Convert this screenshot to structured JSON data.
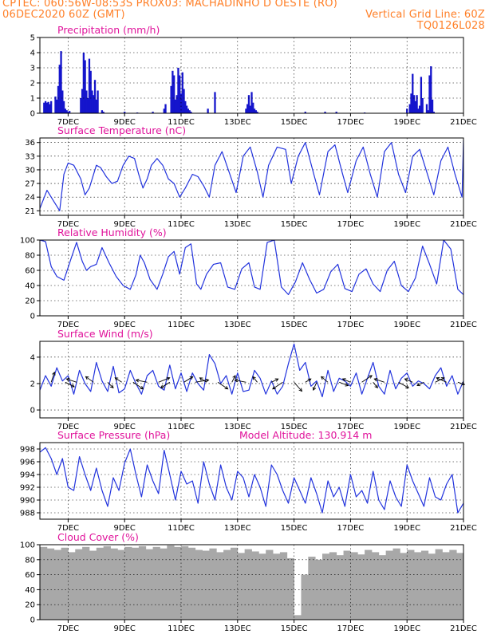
{
  "header": {
    "line1_left": "CPTEC:   060:56W-08:53S   PROX03: MACHADINHO D OESTE (RO)",
    "line2_left": "06DEC2020 60Z (GMT)",
    "line2_right": "Vertical Grid Line: 60Z",
    "line3_right": "TQ0126L028"
  },
  "x_axis": {
    "range": [
      6,
      21
    ],
    "ticks": [
      7,
      9,
      11,
      13,
      15,
      17,
      19,
      21
    ],
    "tick_labels": [
      "7DEC",
      "9DEC",
      "11DEC",
      "13DEC",
      "15DEC",
      "17DEC",
      "19DEC",
      "21DEC"
    ]
  },
  "colors": {
    "line": "#2233dd",
    "bar": "#1515cc",
    "cloud": "#a8a8a8",
    "title": "#e0139b",
    "header": "#ff7f27"
  },
  "chart_data": [
    {
      "type": "bar",
      "title": "Precipitation  (mm/h)",
      "ylim": [
        0,
        5
      ],
      "yticks": [
        0,
        1,
        2,
        3,
        4,
        5
      ],
      "grid": true,
      "x": [
        6.15,
        6.2,
        6.25,
        6.3,
        6.35,
        6.4,
        6.55,
        6.6,
        6.65,
        6.7,
        6.75,
        6.8,
        6.85,
        6.9,
        6.95,
        7.0,
        7.05,
        7.45,
        7.5,
        7.55,
        7.6,
        7.65,
        7.7,
        7.75,
        7.8,
        7.85,
        7.9,
        7.95,
        8.0,
        8.05,
        8.2,
        8.25,
        9.0,
        9.45,
        10.0,
        10.4,
        10.45,
        10.65,
        10.7,
        10.75,
        10.8,
        10.85,
        10.9,
        10.95,
        11.0,
        11.05,
        11.1,
        11.15,
        11.2,
        11.25,
        11.3,
        11.35,
        11.95,
        12.2,
        13.3,
        13.35,
        13.4,
        13.45,
        13.5,
        13.55,
        13.6,
        13.65,
        13.7,
        15.4,
        16.1,
        16.5,
        17.5,
        19.0,
        19.1,
        19.15,
        19.2,
        19.25,
        19.3,
        19.35,
        19.4,
        19.45,
        19.5,
        19.55,
        19.7,
        19.75,
        19.8,
        19.85,
        19.9,
        19.95
      ],
      "values": [
        0.7,
        0.8,
        0.7,
        0.75,
        0.6,
        0.8,
        1.1,
        0.9,
        1.8,
        3.2,
        4.1,
        1.5,
        0.8,
        0.3,
        0.2,
        0.1,
        0.15,
        1.0,
        1.6,
        4.0,
        3.5,
        1.5,
        1.0,
        3.6,
        2.8,
        1.5,
        1.2,
        2.2,
        0.9,
        1.5,
        0.2,
        0.1,
        0.1,
        0.05,
        0.1,
        0.3,
        0.6,
        1.8,
        2.8,
        2.5,
        0.9,
        1.2,
        3.0,
        2.5,
        1.3,
        2.7,
        1.6,
        0.8,
        0.5,
        0.3,
        0.2,
        0.1,
        0.3,
        1.4,
        0.3,
        0.6,
        1.2,
        0.5,
        1.4,
        0.7,
        0.3,
        0.2,
        0.1,
        0.1,
        0.1,
        0.1,
        0.05,
        0.3,
        0.6,
        1.3,
        2.6,
        1.2,
        0.8,
        1.2,
        0.3,
        0.5,
        2.4,
        1.0,
        0.6,
        0.2,
        2.5,
        3.1,
        0.9,
        0.1
      ]
    },
    {
      "type": "line",
      "title": "Surface Temperature  (nC)",
      "ylim": [
        20,
        37
      ],
      "yticks": [
        21,
        24,
        27,
        30,
        33,
        36
      ],
      "grid": true,
      "x": [
        6.0,
        6.25,
        6.5,
        6.7,
        6.85,
        7.0,
        7.2,
        7.45,
        7.6,
        7.75,
        7.9,
        8.0,
        8.15,
        8.35,
        8.55,
        8.75,
        8.95,
        9.15,
        9.35,
        9.5,
        9.65,
        9.8,
        9.95,
        10.15,
        10.35,
        10.55,
        10.75,
        10.95,
        11.15,
        11.4,
        11.6,
        11.8,
        12.0,
        12.2,
        12.45,
        12.7,
        12.95,
        13.2,
        13.45,
        13.7,
        13.9,
        14.1,
        14.4,
        14.7,
        14.9,
        15.15,
        15.4,
        15.7,
        15.9,
        16.2,
        16.45,
        16.7,
        16.9,
        17.2,
        17.45,
        17.7,
        17.95,
        18.2,
        18.45,
        18.7,
        18.95,
        19.2,
        19.45,
        19.7,
        19.95,
        20.2,
        20.45,
        20.7,
        20.95,
        21.0
      ],
      "values": [
        21.5,
        25.5,
        23,
        21,
        29,
        31.5,
        31,
        28,
        24.5,
        26,
        29,
        31,
        30.5,
        28.5,
        27,
        27.5,
        31,
        33,
        32.5,
        29,
        26,
        28,
        31,
        32.5,
        31,
        28,
        27,
        24,
        26,
        29,
        28.5,
        26.5,
        24,
        31,
        34,
        29.5,
        25,
        33,
        35,
        29.5,
        24,
        31,
        35,
        34.5,
        27,
        33,
        36,
        29,
        24.5,
        34,
        35.5,
        29.5,
        25,
        32,
        35,
        29,
        24,
        34,
        36,
        29,
        25,
        33,
        34.5,
        29.5,
        24.5,
        32,
        35,
        29,
        24,
        36.5
      ]
    },
    {
      "type": "line",
      "title": "Relative Humidity  (%)",
      "ylim": [
        0,
        100
      ],
      "yticks": [
        0,
        20,
        40,
        60,
        80,
        100
      ],
      "grid": true,
      "x": [
        6.0,
        6.2,
        6.4,
        6.6,
        6.85,
        7.1,
        7.3,
        7.5,
        7.65,
        7.8,
        8.0,
        8.2,
        8.45,
        8.7,
        8.95,
        9.2,
        9.4,
        9.55,
        9.7,
        9.9,
        10.15,
        10.35,
        10.55,
        10.75,
        10.95,
        11.15,
        11.35,
        11.55,
        11.7,
        11.9,
        12.15,
        12.4,
        12.65,
        12.9,
        13.15,
        13.4,
        13.6,
        13.8,
        14.05,
        14.3,
        14.55,
        14.8,
        15.05,
        15.3,
        15.55,
        15.8,
        16.05,
        16.3,
        16.55,
        16.8,
        17.05,
        17.3,
        17.55,
        17.8,
        18.05,
        18.3,
        18.55,
        18.8,
        19.05,
        19.3,
        19.55,
        19.8,
        20.05,
        20.3,
        20.55,
        20.8,
        21.0
      ],
      "values": [
        100,
        98,
        65,
        52,
        47,
        75,
        97,
        72,
        60,
        65,
        68,
        90,
        70,
        52,
        40,
        35,
        54,
        80,
        70,
        48,
        35,
        55,
        78,
        85,
        55,
        90,
        95,
        42,
        35,
        55,
        68,
        70,
        38,
        35,
        62,
        70,
        38,
        35,
        97,
        100,
        38,
        28,
        45,
        70,
        48,
        30,
        35,
        58,
        68,
        36,
        32,
        55,
        62,
        42,
        32,
        60,
        72,
        40,
        32,
        50,
        92,
        68,
        42,
        100,
        88,
        35,
        28
      ]
    },
    {
      "type": "line",
      "title": "Surface Wind  (m/s)",
      "ylim": [
        -0.6,
        5.2
      ],
      "yticks": [
        0,
        2,
        4
      ],
      "grid": true,
      "x": [
        6.0,
        6.2,
        6.4,
        6.6,
        6.8,
        7.0,
        7.2,
        7.4,
        7.6,
        7.8,
        8.0,
        8.2,
        8.4,
        8.6,
        8.8,
        9.0,
        9.2,
        9.4,
        9.6,
        9.8,
        10.0,
        10.2,
        10.4,
        10.6,
        10.8,
        11.0,
        11.2,
        11.4,
        11.6,
        11.8,
        12.0,
        12.2,
        12.4,
        12.6,
        12.8,
        13.0,
        13.2,
        13.4,
        13.6,
        13.8,
        14.0,
        14.2,
        14.4,
        14.6,
        14.8,
        15.0,
        15.2,
        15.4,
        15.6,
        15.8,
        16.0,
        16.2,
        16.4,
        16.6,
        16.8,
        17.0,
        17.2,
        17.4,
        17.6,
        17.8,
        18.0,
        18.2,
        18.4,
        18.6,
        18.8,
        19.0,
        19.2,
        19.4,
        19.6,
        19.8,
        20.0,
        20.2,
        20.4,
        20.6,
        20.8,
        21.0
      ],
      "values": [
        1.5,
        2.6,
        1.8,
        3.2,
        2.2,
        2.6,
        1.2,
        3.0,
        2.0,
        1.4,
        3.6,
        2.2,
        1.4,
        3.3,
        1.3,
        1.6,
        3.0,
        2.0,
        1.2,
        2.6,
        3.0,
        1.8,
        1.5,
        3.4,
        1.6,
        2.8,
        1.4,
        2.8,
        2.0,
        1.5,
        4.2,
        3.5,
        2.0,
        2.6,
        1.2,
        2.8,
        1.4,
        1.5,
        3.0,
        2.4,
        1.2,
        2.2,
        1.2,
        1.8,
        3.5,
        5.0,
        3.0,
        3.6,
        1.8,
        2.2,
        1.0,
        3.0,
        1.4,
        2.4,
        2.2,
        1.8,
        2.8,
        1.2,
        2.4,
        3.6,
        1.8,
        1.2,
        3.0,
        1.6,
        2.4,
        2.8,
        1.8,
        2.2,
        2.0,
        1.6,
        2.6,
        3.2,
        1.8,
        2.6,
        1.2,
        2.2
      ],
      "vectors_x": [
        6.4,
        6.9,
        7.3,
        7.9,
        8.4,
        8.9,
        9.3,
        9.8,
        10.2,
        10.6,
        11.1,
        11.5,
        11.9,
        12.3,
        12.8,
        13.3,
        13.7,
        14.2,
        14.6,
        15.0,
        15.4,
        15.8,
        16.2,
        16.6,
        17.0,
        17.4,
        17.8,
        18.2,
        18.7,
        19.2,
        19.6,
        20.0,
        20.4,
        20.8
      ],
      "vectors_u": [
        0.3,
        0.8,
        -0.9,
        -0.7,
        0.5,
        -0.6,
        0.9,
        -1.0,
        1.0,
        -0.8,
        0.8,
        1.2,
        -0.6,
        0.9,
        0.3,
        -1.0,
        -0.4,
        0.6,
        -0.9,
        0.7,
        0.5,
        -0.3,
        -0.6,
        0.8,
        -0.7,
        0.9,
        0.4,
        -0.9,
        0.9,
        -0.7,
        -0.6,
        0.8,
        -0.9,
        0.6
      ],
      "vectors_v": [
        0.9,
        -0.4,
        0.3,
        0.5,
        -0.5,
        0.4,
        -0.6,
        0.2,
        0.4,
        -0.5,
        0.5,
        0.2,
        0.4,
        -0.6,
        0.6,
        0.2,
        0.5,
        0.3,
        -0.6,
        -0.8,
        0.3,
        -0.7,
        0.5,
        -0.3,
        0.3,
        0.6,
        -0.5,
        0.3,
        -0.5,
        0.3,
        -0.3,
        0.4,
        0.4,
        -0.2
      ]
    },
    {
      "type": "line",
      "title": "Surface Pressure  (hPa)",
      "subtitle": "Model Altitude: 130.914  m",
      "ylim": [
        987,
        999
      ],
      "yticks": [
        988,
        990,
        992,
        994,
        996,
        998
      ],
      "grid": true,
      "x": [
        6.0,
        6.2,
        6.4,
        6.6,
        6.8,
        7.0,
        7.2,
        7.4,
        7.6,
        7.8,
        8.0,
        8.2,
        8.4,
        8.6,
        8.8,
        9.0,
        9.2,
        9.4,
        9.6,
        9.8,
        10.0,
        10.2,
        10.4,
        10.6,
        10.8,
        11.0,
        11.2,
        11.4,
        11.6,
        11.8,
        12.0,
        12.2,
        12.4,
        12.6,
        12.8,
        13.0,
        13.2,
        13.4,
        13.6,
        13.8,
        14.0,
        14.2,
        14.4,
        14.6,
        14.8,
        15.0,
        15.2,
        15.4,
        15.6,
        15.8,
        16.0,
        16.2,
        16.4,
        16.6,
        16.8,
        17.0,
        17.2,
        17.4,
        17.6,
        17.8,
        18.0,
        18.2,
        18.4,
        18.6,
        18.8,
        19.0,
        19.2,
        19.4,
        19.6,
        19.8,
        20.0,
        20.2,
        20.4,
        20.6,
        20.8,
        21.0
      ],
      "values": [
        997.5,
        998.2,
        996.5,
        994,
        996.5,
        992,
        991.5,
        996.8,
        994,
        991.5,
        995,
        991.5,
        989,
        993.5,
        991.5,
        995.8,
        998,
        994,
        990.5,
        995.5,
        993,
        991,
        997.8,
        994,
        990,
        994.5,
        992.5,
        993,
        989.5,
        996,
        992.5,
        990,
        995.5,
        992,
        990,
        994.5,
        993.5,
        990.5,
        994,
        992,
        989,
        995.5,
        994,
        991.5,
        989.5,
        993.5,
        991.5,
        989.5,
        993.5,
        991,
        988,
        993,
        990.5,
        992,
        989,
        994,
        990.5,
        991.5,
        989.5,
        994.5,
        990,
        988.5,
        993,
        990.5,
        989,
        995.5,
        993,
        991,
        989,
        993.5,
        990.5,
        990,
        992.5,
        994,
        988,
        989.5
      ]
    },
    {
      "type": "bar",
      "title": "Cloud Cover  (%)",
      "ylim": [
        0,
        100
      ],
      "yticks": [
        0,
        20,
        40,
        60,
        80,
        100
      ],
      "grid": true,
      "x": [
        6.0,
        6.25,
        6.5,
        6.75,
        7.0,
        7.25,
        7.5,
        7.75,
        8.0,
        8.25,
        8.5,
        8.75,
        9.0,
        9.25,
        9.5,
        9.75,
        10.0,
        10.25,
        10.5,
        10.75,
        11.0,
        11.25,
        11.5,
        11.75,
        12.0,
        12.25,
        12.5,
        12.75,
        13.0,
        13.25,
        13.5,
        13.75,
        14.0,
        14.25,
        14.5,
        14.75,
        15.0,
        15.25,
        15.5,
        15.75,
        16.0,
        16.25,
        16.5,
        16.75,
        17.0,
        17.25,
        17.5,
        17.75,
        18.0,
        18.25,
        18.5,
        18.75,
        19.0,
        19.25,
        19.5,
        19.75,
        20.0,
        20.25,
        20.5,
        20.75
      ],
      "values": [
        97,
        95,
        93,
        96,
        90,
        94,
        97,
        92,
        96,
        98,
        95,
        93,
        97,
        96,
        98,
        94,
        97,
        95,
        99,
        97,
        98,
        96,
        93,
        92,
        95,
        90,
        93,
        96,
        89,
        94,
        91,
        88,
        93,
        88,
        90,
        82,
        6,
        60,
        84,
        80,
        88,
        90,
        86,
        92,
        90,
        87,
        93,
        90,
        86,
        92,
        95,
        89,
        93,
        90,
        92,
        88,
        94,
        90,
        93,
        89
      ]
    }
  ]
}
